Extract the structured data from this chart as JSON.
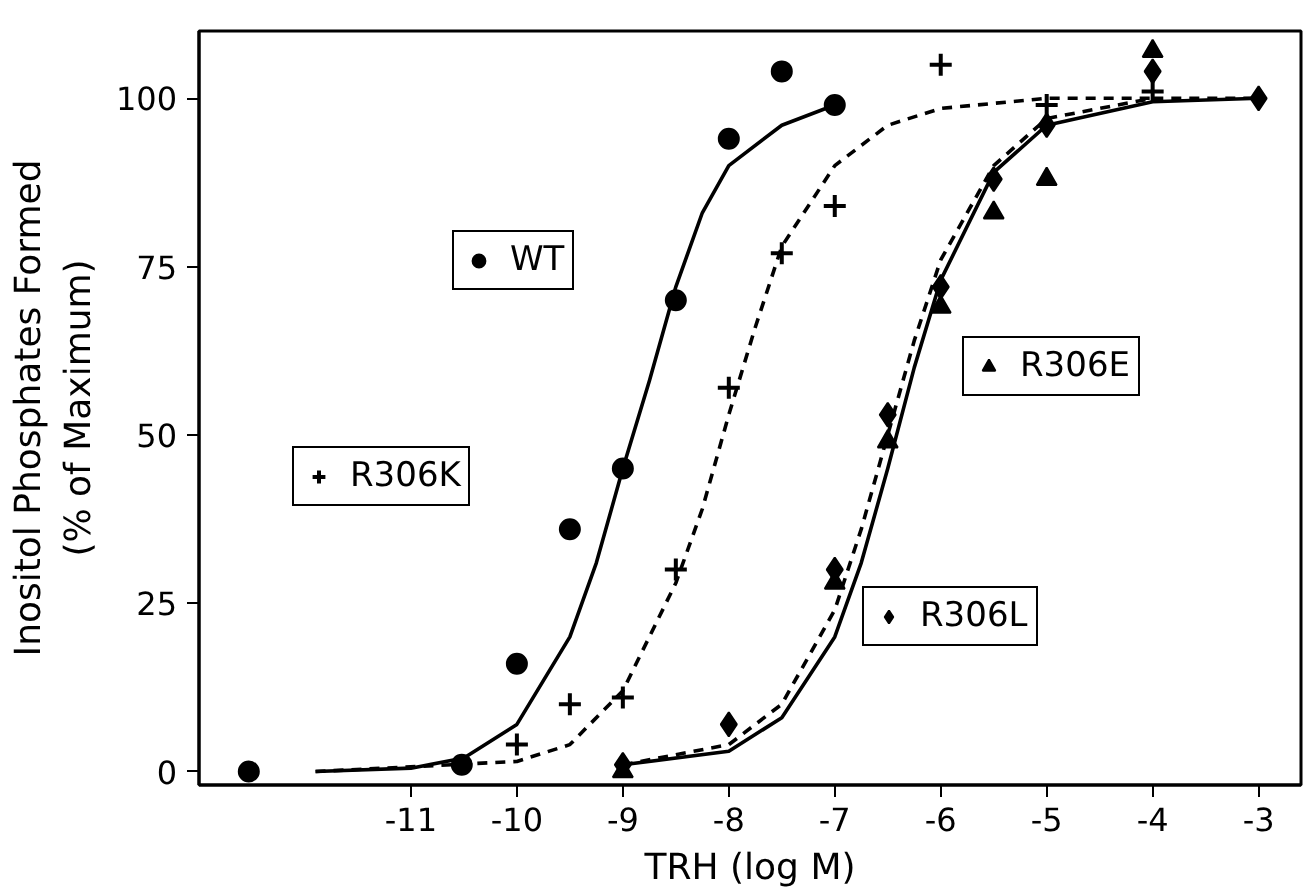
{
  "chart_data": {
    "type": "scatter",
    "xlabel": "TRH (log M)",
    "ylabel": "Inositol Phosphates Formed\n(% of Maximum)",
    "xlim": [
      -13,
      -2.6
    ],
    "ylim": [
      -2,
      110
    ],
    "xticks": [
      -11,
      -10,
      -9,
      -8,
      -7,
      -6,
      -5,
      -4,
      -3
    ],
    "yticks": [
      0,
      25,
      50,
      75,
      100
    ],
    "grid": false,
    "legend": "center",
    "series": [
      {
        "name": "WT",
        "color": "#000000",
        "marker": "circle",
        "x": [
          -12.53,
          -10.52,
          -10,
          -9.5,
          -9,
          -8.5,
          -8,
          -7.5,
          -7
        ],
        "values": [
          0,
          1,
          16,
          36,
          45,
          70,
          94,
          104,
          99
        ]
      },
      {
        "name": "R306K",
        "color": "#000000",
        "marker": "cross",
        "x": [
          -10,
          -9.5,
          -9,
          -8.5,
          -8,
          -7.5,
          -7,
          -6,
          -5,
          -4
        ],
        "values": [
          4,
          10,
          11,
          30,
          57,
          77,
          84,
          105,
          99,
          101
        ]
      },
      {
        "name": "R306E",
        "color": "#000000",
        "marker": "triangle",
        "x": [
          -9,
          -8,
          -7,
          -6.5,
          -6,
          -5.5,
          -5,
          -4
        ],
        "values": [
          0,
          null,
          28,
          49,
          69,
          83,
          88,
          107
        ]
      },
      {
        "name": "R306L",
        "color": "#000000",
        "marker": "diamond",
        "x": [
          -9,
          -8,
          -7,
          -6.5,
          -6,
          -5.5,
          -5,
          -4,
          -3
        ],
        "values": [
          1,
          7,
          30,
          53,
          72,
          88,
          96,
          104,
          100
        ]
      },
      {
        "color": "#000000",
        "type": "line",
        "marker": "none",
        "line_style": "solid",
        "x": [
          -11.9,
          -11,
          -10.5,
          -10,
          -9.5,
          -9.25,
          -9,
          -8.75,
          -8.5,
          -8.25,
          -8,
          -7.5,
          -7
        ],
        "values": [
          0,
          0.5,
          2,
          7,
          20,
          31,
          45,
          58,
          72,
          83,
          90,
          96,
          99
        ]
      },
      {
        "color": "#000000",
        "type": "line",
        "marker": "none",
        "line_style": "dashed",
        "x": [
          -11.9,
          -10,
          -9.5,
          -9,
          -8.5,
          -8.25,
          -8,
          -7.75,
          -7.5,
          -7,
          -6.5,
          -6,
          -5,
          -4
        ],
        "values": [
          0,
          1.5,
          4,
          12,
          28,
          39,
          53,
          66,
          78,
          90,
          96,
          98.5,
          100,
          100
        ]
      },
      {
        "color": "#000000",
        "type": "line",
        "marker": "none",
        "line_style": "solid",
        "x": [
          -9,
          -8,
          -7.5,
          -7,
          -6.75,
          -6.5,
          -6.25,
          -6,
          -5.5,
          -5,
          -4,
          -3
        ],
        "values": [
          1,
          3,
          8,
          20,
          31,
          45,
          60,
          73,
          89,
          96,
          99.5,
          100
        ]
      },
      {
        "color": "#000000",
        "type": "line",
        "marker": "none",
        "line_style": "dashed",
        "x": [
          -9,
          -8,
          -7.5,
          -7,
          -6.75,
          -6.5,
          -6.25,
          -6,
          -5.5,
          -5,
          -4,
          -3
        ],
        "values": [
          1,
          4,
          10,
          24,
          36,
          50,
          64,
          76,
          90,
          97,
          100,
          100
        ]
      }
    ]
  }
}
